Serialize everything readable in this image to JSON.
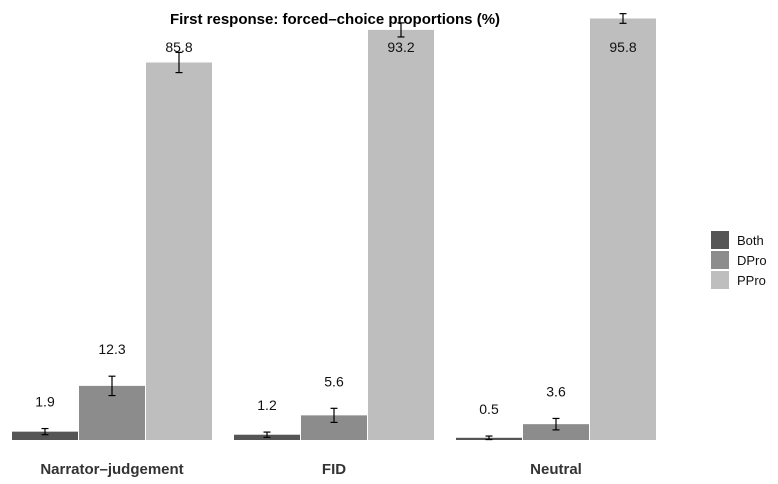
{
  "chart_data": {
    "type": "bar",
    "title": "First response: forced–choice proportions (%)",
    "xlabel": "",
    "ylabel": "",
    "categories": [
      "Narrator–judgement",
      "FID",
      "Neutral"
    ],
    "series": [
      {
        "name": "Both",
        "color": "#555555",
        "values": [
          1.9,
          1.2,
          0.5
        ],
        "error": [
          0.7,
          0.6,
          0.4
        ]
      },
      {
        "name": "DPro",
        "color": "#8c8c8c",
        "values": [
          12.3,
          5.6,
          3.6
        ],
        "error": [
          2.2,
          1.6,
          1.3
        ]
      },
      {
        "name": "PPro",
        "color": "#bebebe",
        "values": [
          85.8,
          93.2,
          95.8
        ],
        "error": [
          2.3,
          1.6,
          1.1
        ]
      }
    ],
    "data_labels": [
      [
        "1.9",
        "1.2",
        "0.5"
      ],
      [
        "12.3",
        "5.6",
        "3.6"
      ],
      [
        "85.8",
        "93.2",
        "95.8"
      ]
    ],
    "ylim": [
      0,
      100
    ],
    "grid": false,
    "legend_position": "right"
  }
}
